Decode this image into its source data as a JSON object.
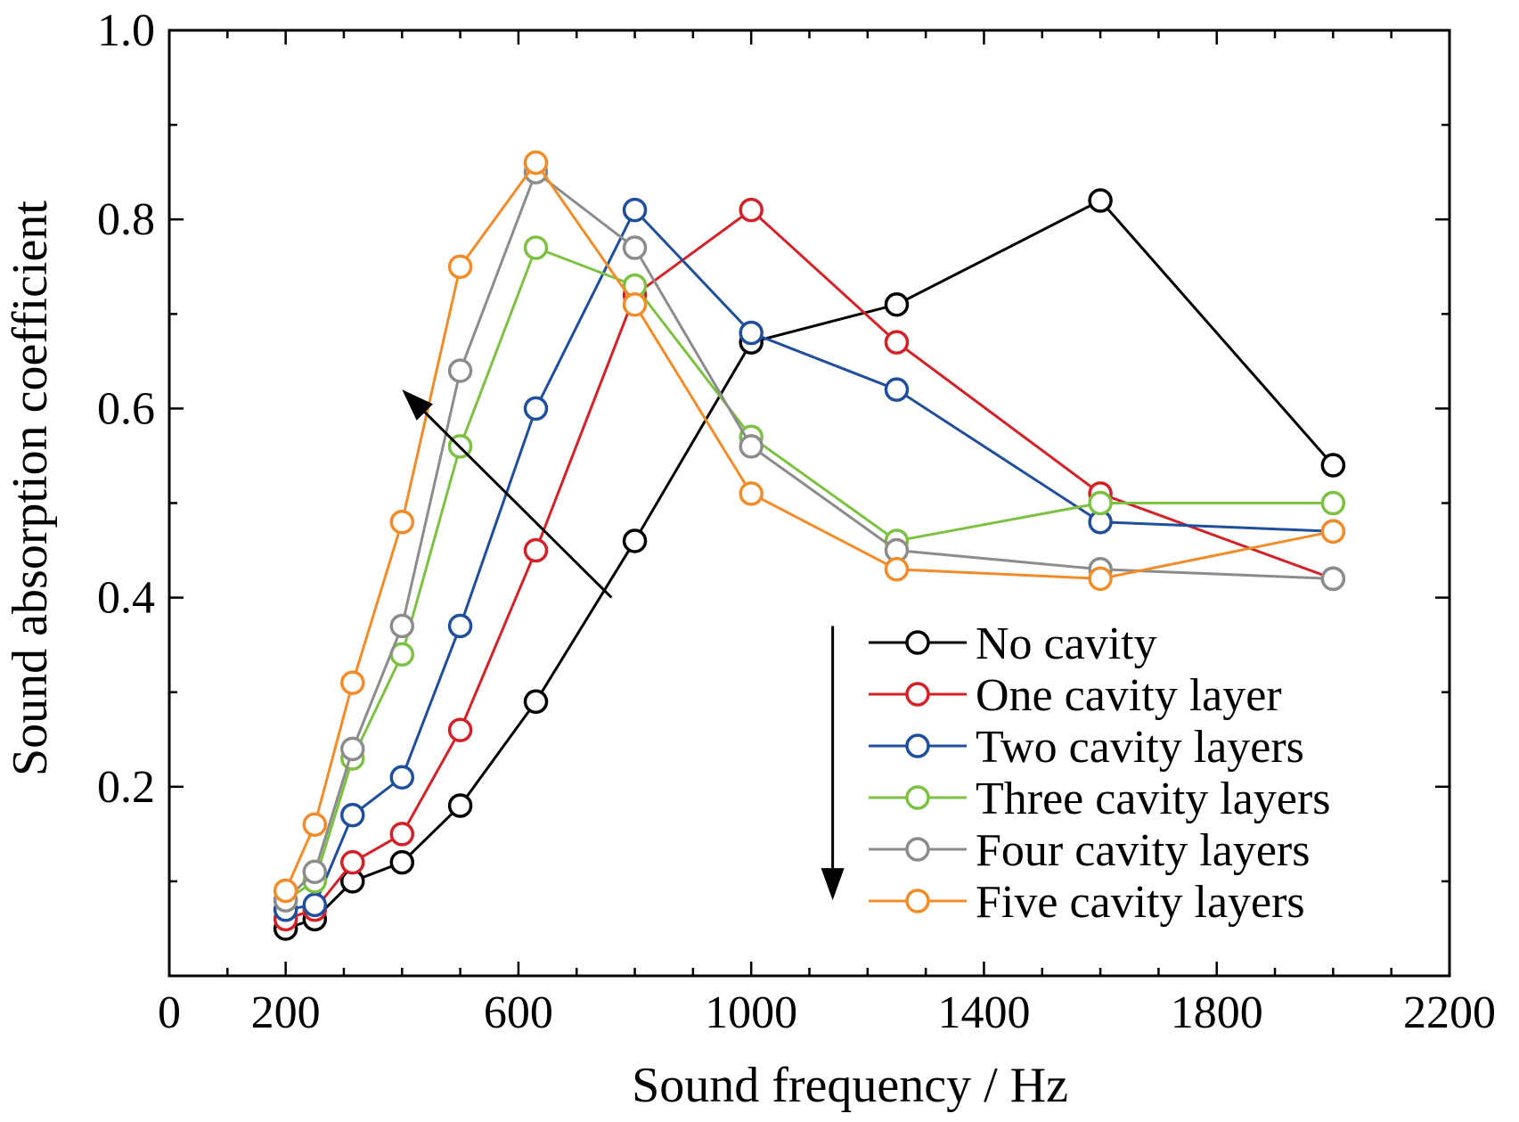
{
  "chart_data": {
    "type": "line",
    "title": "",
    "xlabel": "Sound frequency / Hz",
    "ylabel": "Sound absorption coefficient",
    "xlim": [
      0,
      2200
    ],
    "ylim": [
      0,
      1.0
    ],
    "x_ticks": [
      "0",
      "200",
      "600",
      "1000",
      "1400",
      "1800",
      "2200"
    ],
    "y_ticks": [
      "0.2",
      "0.4",
      "0.6",
      "0.8",
      "1.0"
    ],
    "grid": false,
    "legend_position": "bottom-right",
    "x": [
      200,
      250,
      315,
      400,
      500,
      630,
      800,
      1000,
      1250,
      1600,
      2000
    ],
    "series": [
      {
        "name": "No cavity",
        "color": "#000000",
        "values": [
          0.05,
          0.06,
          0.1,
          0.12,
          0.18,
          0.29,
          0.46,
          0.67,
          0.71,
          0.82,
          0.54
        ]
      },
      {
        "name": "One cavity layer",
        "color": "#d42027",
        "values": [
          0.06,
          0.07,
          0.12,
          0.15,
          0.26,
          0.45,
          0.72,
          0.81,
          0.67,
          0.51,
          0.42
        ]
      },
      {
        "name": "Two cavity layers",
        "color": "#1f4e9c",
        "values": [
          0.07,
          0.075,
          0.17,
          0.21,
          0.37,
          0.6,
          0.81,
          0.68,
          0.62,
          0.48,
          0.47
        ]
      },
      {
        "name": "Three cavity layers",
        "color": "#7dc142",
        "values": [
          0.08,
          0.1,
          0.23,
          0.34,
          0.56,
          0.77,
          0.73,
          0.57,
          0.46,
          0.5,
          0.5
        ]
      },
      {
        "name": "Four cavity layers",
        "color": "#8c8c8c",
        "values": [
          0.08,
          0.11,
          0.24,
          0.37,
          0.64,
          0.85,
          0.77,
          0.56,
          0.45,
          0.43,
          0.42
        ]
      },
      {
        "name": "Five cavity layers",
        "color": "#f28c28",
        "values": [
          0.09,
          0.16,
          0.31,
          0.48,
          0.75,
          0.86,
          0.71,
          0.51,
          0.43,
          0.42,
          0.47
        ]
      }
    ],
    "annotations": [
      {
        "type": "arrow",
        "from": [
          760,
          0.4
        ],
        "to": [
          400,
          0.62
        ]
      },
      {
        "type": "arrow",
        "from": [
          1140,
          0.37
        ],
        "to": [
          1140,
          0.08
        ]
      }
    ]
  }
}
